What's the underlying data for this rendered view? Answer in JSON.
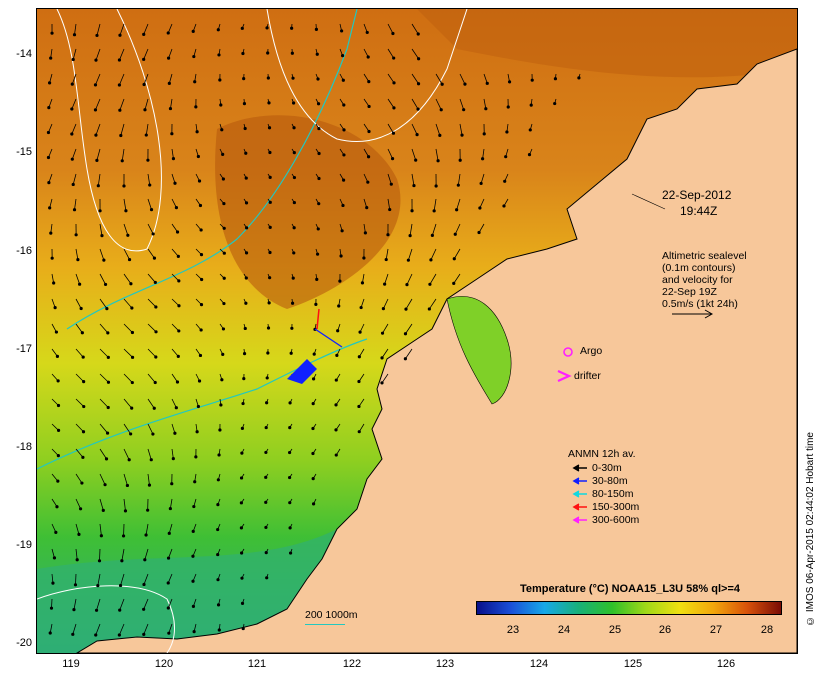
{
  "axes": {
    "lat_ticks": [
      "-14",
      "-15",
      "-16",
      "-17",
      "-18",
      "-19",
      "-20"
    ],
    "lon_ticks": [
      "119",
      "120",
      "121",
      "122",
      "123",
      "124",
      "125",
      "126"
    ]
  },
  "timestamp": {
    "date": "22-Sep-2012",
    "time": "19:44Z"
  },
  "altimetry_note": [
    "Altimetric sealevel",
    "(0.1m contours)",
    "and velocity for",
    "22-Sep 19Z",
    "0.5m/s (1kt 24h)"
  ],
  "symbols": {
    "argo": "Argo",
    "drifter": "drifter"
  },
  "anmn_legend": {
    "title": "ANMN 12h av.",
    "entries": [
      {
        "label": "0-30m",
        "color": "#000000"
      },
      {
        "label": "30-80m",
        "color": "#1020ff"
      },
      {
        "label": "80-150m",
        "color": "#10d8e0"
      },
      {
        "label": "150-300m",
        "color": "#ff1010"
      },
      {
        "label": "300-600m",
        "color": "#ff20ff"
      }
    ]
  },
  "bathymetry_legend": "200  1000m",
  "colorbar": {
    "title": "Temperature (°C) NOAA15_L3U 58% ql>=4",
    "ticks": [
      "23",
      "24",
      "25",
      "26",
      "27",
      "28"
    ]
  },
  "credit": "© IMOS 06-Apr-2015 02:44:02 Hobart time",
  "colors": {
    "land": "#f7c79a",
    "isobath": "#22c8c0",
    "sea_level_contour": "#ffffff"
  }
}
